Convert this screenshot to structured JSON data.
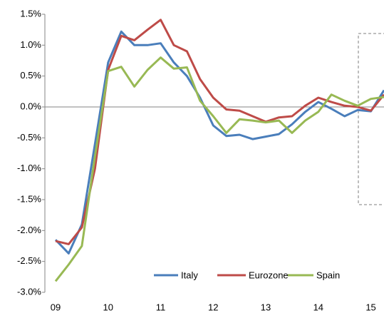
{
  "chart_data": {
    "type": "line",
    "categories": [
      "09",
      null,
      null,
      null,
      "10",
      null,
      null,
      null,
      "11",
      null,
      null,
      null,
      "12",
      null,
      null,
      null,
      "13",
      null,
      null,
      null,
      "14",
      null,
      null,
      null,
      "15",
      null
    ],
    "series": [
      {
        "name": "Italy",
        "color": "#4a7ebb",
        "values": [
          -2.15,
          -2.37,
          -1.9,
          -0.6,
          0.72,
          1.22,
          1.0,
          1.0,
          1.03,
          0.72,
          0.5,
          0.15,
          -0.3,
          -0.47,
          -0.45,
          -0.52,
          -0.48,
          -0.44,
          -0.28,
          -0.08,
          0.08,
          -0.03,
          -0.15,
          -0.05,
          -0.07,
          0.27
        ]
      },
      {
        "name": "Eurozone",
        "color": "#be4b48",
        "values": [
          -2.17,
          -2.22,
          -1.95,
          -1.0,
          0.6,
          1.15,
          1.08,
          1.25,
          1.41,
          1.0,
          0.9,
          0.45,
          0.15,
          -0.04,
          -0.06,
          -0.15,
          -0.24,
          -0.17,
          -0.15,
          0.02,
          0.15,
          0.08,
          0.02,
          0.0,
          -0.06,
          0.2
        ]
      },
      {
        "name": "Spain",
        "color": "#98b954",
        "values": [
          -2.82,
          -2.55,
          -2.25,
          -0.8,
          0.58,
          0.65,
          0.33,
          0.6,
          0.8,
          0.62,
          0.64,
          0.1,
          -0.15,
          -0.42,
          -0.2,
          -0.22,
          -0.25,
          -0.22,
          -0.42,
          -0.22,
          -0.08,
          0.2,
          0.1,
          0.02,
          0.13,
          0.16
        ]
      }
    ],
    "ylim": [
      -3.0,
      1.5
    ],
    "yticks": [
      {
        "value": 1.5,
        "label": "1.5%"
      },
      {
        "value": 1.0,
        "label": "1.0%"
      },
      {
        "value": 0.5,
        "label": "0.5%"
      },
      {
        "value": 0.0,
        "label": "0.0%"
      },
      {
        "value": -0.5,
        "label": "-0.5%"
      },
      {
        "value": -1.0,
        "label": "-1.0%"
      },
      {
        "value": -1.5,
        "label": "-1.5%"
      },
      {
        "value": -2.0,
        "label": "-2.0%"
      },
      {
        "value": -2.5,
        "label": "-2.5%"
      },
      {
        "value": -3.0,
        "label": "-3.0%"
      }
    ],
    "grid": false,
    "legend": "bottom-right"
  }
}
